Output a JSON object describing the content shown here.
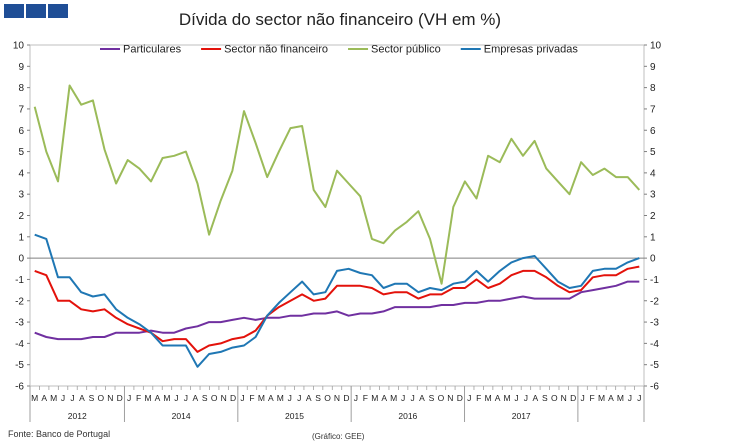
{
  "footer": {
    "source": "Fonte: Banco de Portugal",
    "credit": "(Gráfico: GEE)"
  },
  "chart_data": {
    "type": "line",
    "title": "Dívida do sector não financeiro (VH em %)",
    "ylim": [
      -6,
      10
    ],
    "yticks": [
      10,
      9,
      8,
      7,
      6,
      5,
      4,
      3,
      2,
      1,
      0,
      -1,
      -2,
      -3,
      -4,
      -5,
      -6
    ],
    "legend_position": "top",
    "month_labels": [
      "M",
      "A",
      "M",
      "J",
      "J",
      "A",
      "S",
      "O",
      "N",
      "D",
      "J",
      "F",
      "M",
      "A",
      "M",
      "J",
      "J",
      "A",
      "S",
      "O",
      "N",
      "D",
      "J",
      "F",
      "M",
      "A",
      "M",
      "J",
      "J",
      "A",
      "S",
      "O",
      "N",
      "D",
      "J",
      "F",
      "M",
      "A",
      "M",
      "J",
      "J",
      "A",
      "S",
      "O",
      "N",
      "D",
      "J",
      "F",
      "M",
      "A",
      "M",
      "J",
      "J",
      "A",
      "S",
      "O",
      "N",
      "D",
      "J",
      "F",
      "M",
      "A",
      "M",
      "J",
      "J"
    ],
    "year_labels": [
      "2012",
      "2014",
      "2015",
      "2016",
      "2017"
    ],
    "series": [
      {
        "name": "Particulares",
        "color": "#7030a0",
        "values": [
          -3.5,
          -3.7,
          -3.8,
          -3.8,
          -3.8,
          -3.7,
          -3.7,
          -3.5,
          -3.5,
          -3.5,
          -3.4,
          -3.5,
          -3.5,
          -3.3,
          -3.2,
          -3.0,
          -3.0,
          -2.9,
          -2.8,
          -2.9,
          -2.8,
          -2.8,
          -2.7,
          -2.7,
          -2.6,
          -2.6,
          -2.5,
          -2.7,
          -2.6,
          -2.6,
          -2.5,
          -2.3,
          -2.3,
          -2.3,
          -2.3,
          -2.2,
          -2.2,
          -2.1,
          -2.1,
          -2.0,
          -2.0,
          -1.9,
          -1.8,
          -1.9,
          -1.9,
          -1.9,
          -1.9,
          -1.6,
          -1.5,
          -1.4,
          -1.3,
          -1.1,
          -1.1
        ]
      },
      {
        "name": "Sector não financeiro",
        "color": "#e3120b",
        "values": [
          -0.6,
          -0.8,
          -2.0,
          -2.0,
          -2.4,
          -2.5,
          -2.4,
          -2.8,
          -3.1,
          -3.3,
          -3.5,
          -3.9,
          -3.8,
          -3.8,
          -4.4,
          -4.1,
          -4.0,
          -3.8,
          -3.7,
          -3.4,
          -2.7,
          -2.3,
          -2.0,
          -1.7,
          -2.0,
          -1.9,
          -1.3,
          -1.3,
          -1.3,
          -1.4,
          -1.7,
          -1.6,
          -1.6,
          -1.9,
          -1.7,
          -1.7,
          -1.4,
          -1.4,
          -1.0,
          -1.4,
          -1.2,
          -0.8,
          -0.6,
          -0.6,
          -0.9,
          -1.3,
          -1.6,
          -1.5,
          -0.9,
          -0.8,
          -0.8,
          -0.5,
          -0.4
        ]
      },
      {
        "name": "Sector público",
        "color": "#9bbb59",
        "values": [
          7.1,
          5.0,
          3.6,
          8.1,
          7.2,
          7.4,
          5.1,
          3.5,
          4.6,
          4.2,
          3.6,
          4.7,
          4.8,
          5.0,
          3.5,
          1.1,
          2.7,
          4.1,
          6.9,
          5.4,
          3.8,
          5.0,
          6.1,
          6.2,
          3.2,
          2.4,
          4.1,
          3.5,
          2.9,
          0.9,
          0.7,
          1.3,
          1.7,
          2.2,
          0.9,
          -1.2,
          2.4,
          3.6,
          2.8,
          4.8,
          4.5,
          5.6,
          4.8,
          5.5,
          4.2,
          3.6,
          3.0,
          4.5,
          3.9,
          4.2,
          3.8,
          3.8,
          3.2
        ]
      },
      {
        "name": "Empresas privadas",
        "color": "#1f77b4",
        "values": [
          1.1,
          0.9,
          -0.9,
          -0.9,
          -1.6,
          -1.8,
          -1.7,
          -2.4,
          -2.8,
          -3.1,
          -3.5,
          -4.1,
          -4.1,
          -4.1,
          -5.1,
          -4.5,
          -4.4,
          -4.2,
          -4.1,
          -3.7,
          -2.7,
          -2.1,
          -1.6,
          -1.1,
          -1.7,
          -1.6,
          -0.6,
          -0.5,
          -0.7,
          -0.8,
          -1.4,
          -1.2,
          -1.2,
          -1.6,
          -1.4,
          -1.5,
          -1.2,
          -1.1,
          -0.6,
          -1.1,
          -0.6,
          -0.2,
          0.0,
          0.1,
          -0.5,
          -1.1,
          -1.4,
          -1.3,
          -0.6,
          -0.5,
          -0.5,
          -0.2,
          0.0
        ]
      }
    ]
  }
}
